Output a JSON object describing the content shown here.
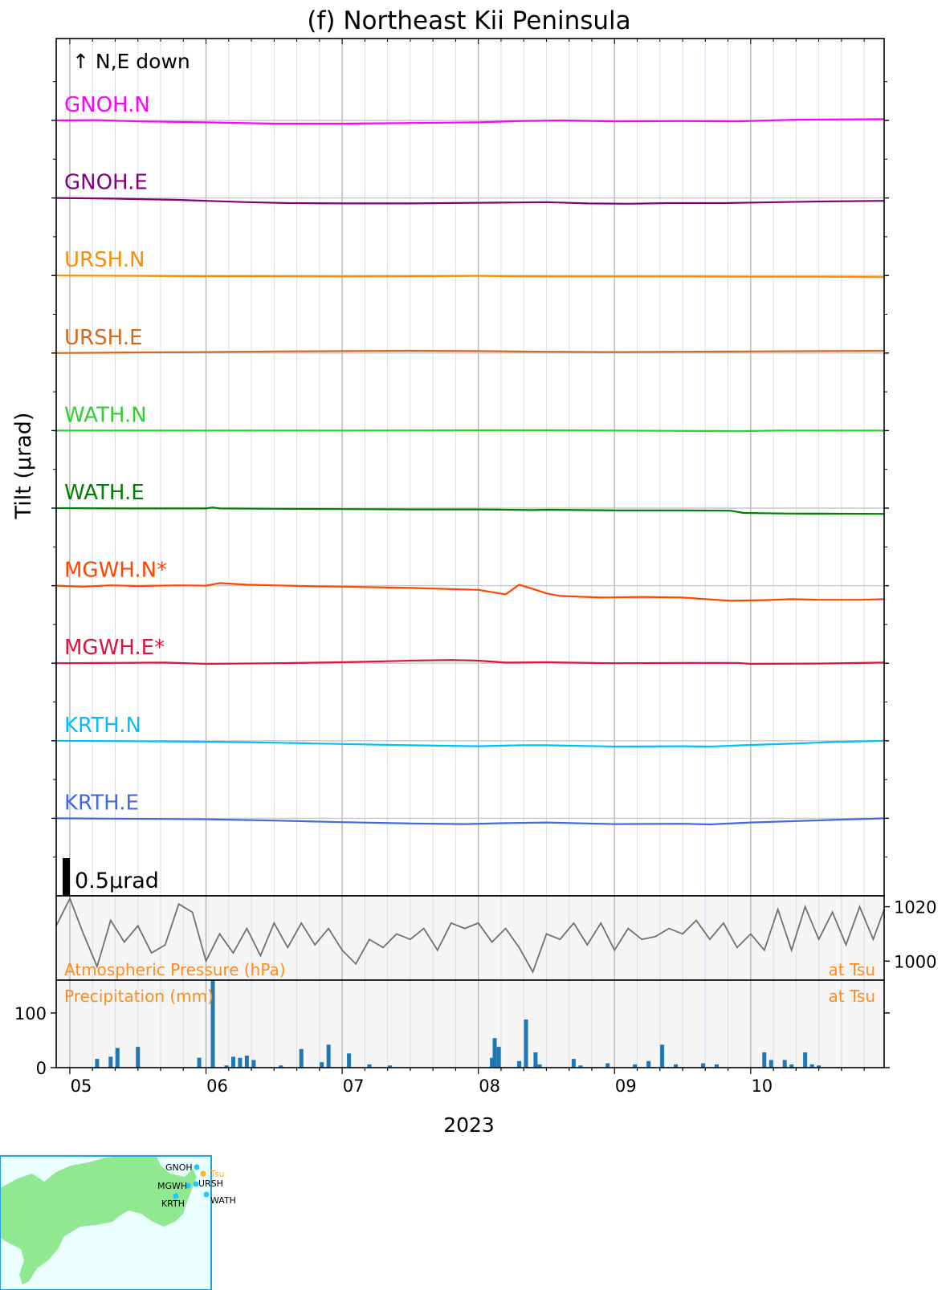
{
  "title": "(f) Northeast Kii Peninsula",
  "ylabel": "Tilt (μrad)",
  "xlabel": "2023",
  "direction_note": "↑ N,E down",
  "scale_bar_label": "0.5μrad",
  "pressure_label": "Atmospheric Pressure (hPa)",
  "pressure_station": "at Tsu",
  "precip_label": "Precipitation (mm)",
  "precip_station": "at Tsu",
  "map": {
    "stations": [
      "GNOH",
      "Tsu",
      "MGWH",
      "URSH",
      "KRTH",
      "WATH"
    ],
    "land_color": "#90e890",
    "sea_color": "#eaffff",
    "station_color": "#1ec8ff",
    "tsu_color": "#ffb020"
  },
  "chart_data": [
    {
      "type": "line",
      "panel": "tilt",
      "x_ticks": [
        "05",
        "06",
        "07",
        "08",
        "09",
        "10"
      ],
      "x_tick_values": [
        5,
        6,
        7,
        8,
        9,
        10
      ],
      "x_range": [
        4.9,
        10.98
      ],
      "scale_bar_urad": 0.5,
      "units_per_urad": 2.3,
      "series": [
        {
          "name": "GNOH.N",
          "color": "#ff00ff",
          "points": [
            [
              4.9,
              0
            ],
            [
              5.2,
              0.01
            ],
            [
              5.5,
              -0.03
            ],
            [
              6.0,
              -0.06
            ],
            [
              6.5,
              -0.1
            ],
            [
              7.0,
              -0.1
            ],
            [
              7.5,
              -0.08
            ],
            [
              8.0,
              -0.06
            ],
            [
              8.3,
              -0.02
            ],
            [
              8.6,
              0
            ],
            [
              9.0,
              -0.03
            ],
            [
              9.5,
              -0.02
            ],
            [
              9.9,
              -0.03
            ],
            [
              10.3,
              0.02
            ],
            [
              10.6,
              0.03
            ],
            [
              10.98,
              0.04
            ]
          ]
        },
        {
          "name": "GNOH.E",
          "color": "#800080",
          "points": [
            [
              4.9,
              0
            ],
            [
              5.3,
              -0.02
            ],
            [
              5.8,
              -0.06
            ],
            [
              6.0,
              -0.09
            ],
            [
              6.3,
              -0.13
            ],
            [
              6.6,
              -0.16
            ],
            [
              7.0,
              -0.17
            ],
            [
              7.5,
              -0.17
            ],
            [
              8.0,
              -0.15
            ],
            [
              8.3,
              -0.14
            ],
            [
              8.5,
              -0.13
            ],
            [
              8.8,
              -0.17
            ],
            [
              9.1,
              -0.18
            ],
            [
              9.4,
              -0.16
            ],
            [
              9.8,
              -0.16
            ],
            [
              10.2,
              -0.13
            ],
            [
              10.5,
              -0.11
            ],
            [
              10.98,
              -0.09
            ]
          ]
        },
        {
          "name": "URSH.N",
          "color": "#ff8c00",
          "points": [
            [
              4.9,
              0
            ],
            [
              5.5,
              -0.01
            ],
            [
              6.0,
              -0.02
            ],
            [
              6.5,
              -0.02
            ],
            [
              7.0,
              -0.03
            ],
            [
              7.5,
              -0.02
            ],
            [
              8.0,
              -0.01
            ],
            [
              8.5,
              -0.03
            ],
            [
              9.0,
              -0.03
            ],
            [
              9.5,
              -0.03
            ],
            [
              10.0,
              -0.04
            ],
            [
              10.5,
              -0.04
            ],
            [
              10.98,
              -0.05
            ]
          ]
        },
        {
          "name": "URSH.E",
          "color": "#d2691e",
          "points": [
            [
              4.9,
              0
            ],
            [
              5.5,
              0.02
            ],
            [
              6.0,
              0.03
            ],
            [
              6.5,
              0.05
            ],
            [
              7.0,
              0.06
            ],
            [
              7.5,
              0.07
            ],
            [
              8.0,
              0.06
            ],
            [
              8.5,
              0.04
            ],
            [
              9.0,
              0.03
            ],
            [
              9.5,
              0.04
            ],
            [
              10.0,
              0.05
            ],
            [
              10.5,
              0.06
            ],
            [
              10.98,
              0.07
            ]
          ]
        },
        {
          "name": "WATH.N",
          "color": "#32cd32",
          "points": [
            [
              4.9,
              0
            ],
            [
              5.5,
              0
            ],
            [
              6.0,
              0
            ],
            [
              7.0,
              0
            ],
            [
              8.0,
              0.01
            ],
            [
              8.5,
              0.01
            ],
            [
              9.0,
              0
            ],
            [
              9.5,
              -0.01
            ],
            [
              9.9,
              -0.02
            ],
            [
              10.2,
              0
            ],
            [
              10.98,
              0
            ]
          ]
        },
        {
          "name": "WATH.E",
          "color": "#008000",
          "points": [
            [
              4.9,
              0
            ],
            [
              5.5,
              -0.01
            ],
            [
              6.0,
              -0.01
            ],
            [
              6.05,
              0.02
            ],
            [
              6.1,
              -0.01
            ],
            [
              6.5,
              -0.02
            ],
            [
              7.0,
              -0.03
            ],
            [
              7.5,
              -0.04
            ],
            [
              8.0,
              -0.04
            ],
            [
              8.4,
              -0.06
            ],
            [
              8.5,
              -0.05
            ],
            [
              9.0,
              -0.07
            ],
            [
              9.5,
              -0.07
            ],
            [
              9.85,
              -0.08
            ],
            [
              9.95,
              -0.15
            ],
            [
              10.3,
              -0.17
            ],
            [
              10.98,
              -0.18
            ]
          ]
        },
        {
          "name": "MGWH.N*",
          "color": "#ff4500",
          "points": [
            [
              4.9,
              0
            ],
            [
              5.1,
              -0.03
            ],
            [
              5.3,
              0.01
            ],
            [
              5.5,
              -0.01
            ],
            [
              5.8,
              0.01
            ],
            [
              6.0,
              0
            ],
            [
              6.1,
              0.08
            ],
            [
              6.3,
              0.03
            ],
            [
              6.5,
              0.01
            ],
            [
              6.8,
              -0.02
            ],
            [
              7.0,
              -0.03
            ],
            [
              7.5,
              -0.07
            ],
            [
              8.0,
              -0.13
            ],
            [
              8.2,
              -0.27
            ],
            [
              8.3,
              0.03
            ],
            [
              8.4,
              -0.1
            ],
            [
              8.5,
              -0.24
            ],
            [
              8.6,
              -0.32
            ],
            [
              8.9,
              -0.37
            ],
            [
              9.2,
              -0.35
            ],
            [
              9.5,
              -0.37
            ],
            [
              9.85,
              -0.47
            ],
            [
              10.1,
              -0.45
            ],
            [
              10.3,
              -0.42
            ],
            [
              10.5,
              -0.44
            ],
            [
              10.8,
              -0.44
            ],
            [
              10.98,
              -0.42
            ]
          ]
        },
        {
          "name": "MGWH.E*",
          "color": "#dc143c",
          "points": [
            [
              4.9,
              0
            ],
            [
              5.3,
              0.01
            ],
            [
              5.7,
              0.02
            ],
            [
              6.0,
              -0.02
            ],
            [
              6.5,
              0
            ],
            [
              7.0,
              0.03
            ],
            [
              7.5,
              0.08
            ],
            [
              7.8,
              0.1
            ],
            [
              8.0,
              0.08
            ],
            [
              8.2,
              0.02
            ],
            [
              8.5,
              0.03
            ],
            [
              9.0,
              0
            ],
            [
              9.5,
              0.01
            ],
            [
              9.9,
              0.01
            ],
            [
              10.0,
              -0.02
            ],
            [
              10.5,
              -0.01
            ],
            [
              10.98,
              0.02
            ]
          ]
        },
        {
          "name": "KRTH.N",
          "color": "#00bfff",
          "points": [
            [
              4.9,
              0
            ],
            [
              5.3,
              -0.01
            ],
            [
              5.7,
              -0.02
            ],
            [
              6.0,
              -0.03
            ],
            [
              6.5,
              -0.06
            ],
            [
              7.0,
              -0.1
            ],
            [
              7.5,
              -0.14
            ],
            [
              8.0,
              -0.17
            ],
            [
              8.3,
              -0.14
            ],
            [
              8.5,
              -0.14
            ],
            [
              9.0,
              -0.18
            ],
            [
              9.5,
              -0.17
            ],
            [
              9.7,
              -0.18
            ],
            [
              10.0,
              -0.13
            ],
            [
              10.3,
              -0.09
            ],
            [
              10.6,
              -0.04
            ],
            [
              10.98,
              0
            ]
          ]
        },
        {
          "name": "KRTH.E",
          "color": "#4169e1",
          "points": [
            [
              4.9,
              0
            ],
            [
              5.3,
              -0.01
            ],
            [
              5.7,
              -0.02
            ],
            [
              6.0,
              -0.03
            ],
            [
              6.5,
              -0.07
            ],
            [
              7.0,
              -0.12
            ],
            [
              7.5,
              -0.16
            ],
            [
              7.9,
              -0.18
            ],
            [
              8.2,
              -0.15
            ],
            [
              8.5,
              -0.13
            ],
            [
              9.0,
              -0.18
            ],
            [
              9.5,
              -0.17
            ],
            [
              9.7,
              -0.19
            ],
            [
              10.0,
              -0.13
            ],
            [
              10.3,
              -0.09
            ],
            [
              10.6,
              -0.05
            ],
            [
              10.98,
              0
            ]
          ]
        }
      ]
    },
    {
      "type": "line",
      "panel": "pressure",
      "ylabel": "",
      "yticks": [
        1000,
        1020
      ],
      "ylim": [
        993,
        1024
      ],
      "series": [
        {
          "color": "#707070",
          "points": [
            [
              4.9,
              1013
            ],
            [
              5.0,
              1023
            ],
            [
              5.1,
              1010
            ],
            [
              5.2,
              998
            ],
            [
              5.3,
              1015
            ],
            [
              5.4,
              1007
            ],
            [
              5.5,
              1013
            ],
            [
              5.6,
              1003
            ],
            [
              5.7,
              1006
            ],
            [
              5.8,
              1021
            ],
            [
              5.9,
              1018
            ],
            [
              6.0,
              1000
            ],
            [
              6.1,
              1010
            ],
            [
              6.2,
              1003
            ],
            [
              6.3,
              1012
            ],
            [
              6.4,
              1002
            ],
            [
              6.5,
              1014
            ],
            [
              6.6,
              1005
            ],
            [
              6.7,
              1014
            ],
            [
              6.8,
              1006
            ],
            [
              6.9,
              1012
            ],
            [
              7.0,
              1004
            ],
            [
              7.1,
              999
            ],
            [
              7.2,
              1008
            ],
            [
              7.3,
              1005
            ],
            [
              7.4,
              1010
            ],
            [
              7.5,
              1008
            ],
            [
              7.6,
              1012
            ],
            [
              7.7,
              1004
            ],
            [
              7.8,
              1014
            ],
            [
              7.9,
              1012
            ],
            [
              8.0,
              1014
            ],
            [
              8.1,
              1007
            ],
            [
              8.2,
              1012
            ],
            [
              8.3,
              1005
            ],
            [
              8.4,
              996
            ],
            [
              8.5,
              1010
            ],
            [
              8.6,
              1008
            ],
            [
              8.7,
              1014
            ],
            [
              8.8,
              1006
            ],
            [
              8.9,
              1014
            ],
            [
              9.0,
              1004
            ],
            [
              9.1,
              1012
            ],
            [
              9.2,
              1008
            ],
            [
              9.3,
              1009
            ],
            [
              9.4,
              1012
            ],
            [
              9.5,
              1010
            ],
            [
              9.6,
              1015
            ],
            [
              9.7,
              1008
            ],
            [
              9.8,
              1014
            ],
            [
              9.9,
              1005
            ],
            [
              10.0,
              1010
            ],
            [
              10.1,
              1004
            ],
            [
              10.2,
              1019
            ],
            [
              10.3,
              1004
            ],
            [
              10.4,
              1020
            ],
            [
              10.5,
              1008
            ],
            [
              10.6,
              1018
            ],
            [
              10.7,
              1006
            ],
            [
              10.8,
              1020
            ],
            [
              10.9,
              1008
            ],
            [
              10.98,
              1019
            ]
          ]
        }
      ]
    },
    {
      "type": "bar",
      "panel": "precipitation",
      "yticks": [
        0,
        100
      ],
      "ylim": [
        0,
        160
      ],
      "color": "#1f77b4",
      "x": [
        5.2,
        5.3,
        5.35,
        5.5,
        5.95,
        6.05,
        6.15,
        6.2,
        6.25,
        6.3,
        6.35,
        6.55,
        6.7,
        6.85,
        6.9,
        7.05,
        7.2,
        7.35,
        8.1,
        8.12,
        8.15,
        8.3,
        8.35,
        8.42,
        8.45,
        8.7,
        8.75,
        8.95,
        9.15,
        9.25,
        9.35,
        9.45,
        9.65,
        9.75,
        10.1,
        10.15,
        10.25,
        10.3,
        10.4,
        10.45,
        10.5
      ],
      "values": [
        16,
        20,
        36,
        38,
        18,
        160,
        4,
        20,
        18,
        22,
        14,
        4,
        34,
        10,
        42,
        26,
        6,
        4,
        18,
        54,
        38,
        12,
        88,
        28,
        6,
        16,
        4,
        8,
        6,
        12,
        42,
        6,
        8,
        6,
        28,
        14,
        14,
        6,
        28,
        6,
        4
      ]
    }
  ]
}
